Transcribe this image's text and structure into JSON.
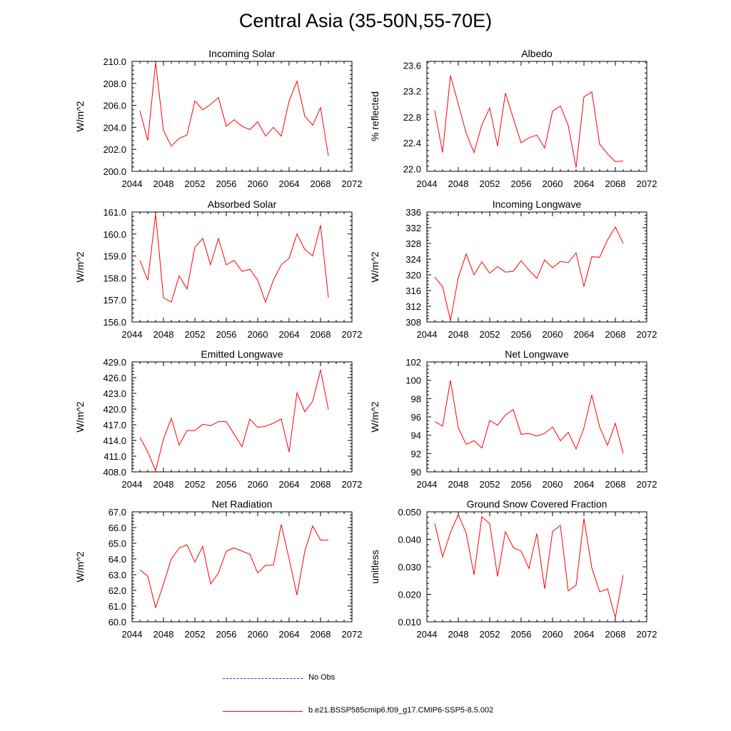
{
  "title": "Central Asia (35-50N,55-70E)",
  "colors": {
    "series": "#ff0000",
    "obs": "#3333cc",
    "axis": "#000000"
  },
  "legend": {
    "obs_label": "No Obs",
    "model_label": "b.e21.BSSP585cmip6.f09_g17.CMIP6-SSP5-8.5.002"
  },
  "chart_data": [
    {
      "type": "line",
      "title": "Incoming Solar",
      "ylabel": "W/m^2",
      "xlim": [
        2044,
        2072
      ],
      "xticks": [
        "2044",
        "2048",
        "2052",
        "2056",
        "2060",
        "2064",
        "2068",
        "2072"
      ],
      "ylim": [
        200.0,
        210.0
      ],
      "yticks": [
        "200.0",
        "202.0",
        "204.0",
        "206.0",
        "208.0",
        "210.0"
      ],
      "x": [
        2045,
        2046,
        2047,
        2048,
        2049,
        2050,
        2051,
        2052,
        2053,
        2054,
        2055,
        2056,
        2057,
        2058,
        2059,
        2060,
        2061,
        2062,
        2063,
        2064,
        2065,
        2066,
        2067,
        2068,
        2069
      ],
      "values": [
        205.5,
        202.8,
        209.9,
        203.7,
        202.3,
        203.0,
        203.3,
        206.4,
        205.6,
        206.1,
        206.7,
        204.1,
        204.7,
        204.1,
        203.8,
        204.5,
        203.2,
        204.0,
        203.2,
        206.4,
        208.2,
        205.0,
        204.2,
        205.8,
        201.4
      ]
    },
    {
      "type": "line",
      "title": "Albedo",
      "ylabel": "% reflected",
      "xlim": [
        2044,
        2072
      ],
      "xticks": [
        "2044",
        "2048",
        "2052",
        "2056",
        "2060",
        "2064",
        "2068",
        "2072"
      ],
      "ylim": [
        21.96,
        23.66
      ],
      "yticks": [
        "22.0",
        "22.4",
        "22.8",
        "23.2",
        "23.6"
      ],
      "x": [
        2045,
        2046,
        2047,
        2048,
        2049,
        2050,
        2051,
        2052,
        2053,
        2054,
        2055,
        2056,
        2057,
        2058,
        2059,
        2060,
        2061,
        2062,
        2063,
        2064,
        2065,
        2066,
        2067,
        2068,
        2069
      ],
      "values": [
        22.9,
        22.25,
        23.44,
        23.0,
        22.55,
        22.25,
        22.68,
        22.94,
        22.35,
        23.17,
        22.78,
        22.4,
        22.48,
        22.52,
        22.32,
        22.89,
        22.97,
        22.67,
        22.02,
        23.11,
        23.19,
        22.38,
        22.23,
        22.11,
        22.12
      ]
    },
    {
      "type": "line",
      "title": "Absorbed Solar",
      "ylabel": "W/m^2",
      "xlim": [
        2044,
        2072
      ],
      "xticks": [
        "2044",
        "2048",
        "2052",
        "2056",
        "2060",
        "2064",
        "2068",
        "2072"
      ],
      "ylim": [
        156.0,
        161.0
      ],
      "yticks": [
        "156.0",
        "157.0",
        "158.0",
        "159.0",
        "160.0",
        "161.0"
      ],
      "x": [
        2045,
        2046,
        2047,
        2048,
        2049,
        2050,
        2051,
        2052,
        2053,
        2054,
        2055,
        2056,
        2057,
        2058,
        2059,
        2060,
        2061,
        2062,
        2063,
        2064,
        2065,
        2066,
        2067,
        2068,
        2069
      ],
      "values": [
        158.8,
        157.9,
        160.9,
        157.1,
        156.9,
        158.1,
        157.5,
        159.4,
        159.8,
        158.6,
        159.8,
        158.6,
        158.8,
        158.3,
        158.4,
        157.9,
        156.9,
        157.9,
        158.6,
        158.9,
        160.0,
        159.3,
        159.0,
        160.4,
        157.1
      ]
    },
    {
      "type": "line",
      "title": "Incoming Longwave",
      "ylabel": "W/m^2",
      "xlim": [
        2044,
        2072
      ],
      "xticks": [
        "2044",
        "2048",
        "2052",
        "2056",
        "2060",
        "2064",
        "2068",
        "2072"
      ],
      "ylim": [
        308,
        336
      ],
      "yticks": [
        "308",
        "312",
        "316",
        "320",
        "324",
        "328",
        "332",
        "336"
      ],
      "x": [
        2045,
        2046,
        2047,
        2048,
        2049,
        2050,
        2051,
        2052,
        2053,
        2054,
        2055,
        2056,
        2057,
        2058,
        2059,
        2060,
        2061,
        2062,
        2063,
        2064,
        2065,
        2066,
        2067,
        2068,
        2069
      ],
      "values": [
        319.4,
        317.0,
        308.4,
        319.3,
        325.3,
        320.0,
        323.3,
        320.4,
        322.1,
        320.7,
        320.9,
        323.6,
        321.2,
        319.1,
        323.8,
        321.8,
        323.4,
        323.1,
        325.6,
        317.0,
        324.6,
        324.5,
        328.9,
        332.2,
        328.0
      ]
    },
    {
      "type": "line",
      "title": "Emitted Longwave",
      "ylabel": "W/m^2",
      "xlim": [
        2044,
        2072
      ],
      "xticks": [
        "2044",
        "2048",
        "2052",
        "2056",
        "2060",
        "2064",
        "2068",
        "2072"
      ],
      "ylim": [
        408.0,
        429.0
      ],
      "yticks": [
        "408.0",
        "411.0",
        "414.0",
        "417.0",
        "420.0",
        "423.0",
        "426.0",
        "429.0"
      ],
      "x": [
        2045,
        2046,
        2047,
        2048,
        2049,
        2050,
        2051,
        2052,
        2053,
        2054,
        2055,
        2056,
        2057,
        2058,
        2059,
        2060,
        2061,
        2062,
        2063,
        2064,
        2065,
        2066,
        2067,
        2068,
        2069
      ],
      "values": [
        414.6,
        411.8,
        408.2,
        414.3,
        418.2,
        413.1,
        415.9,
        415.9,
        417.1,
        416.8,
        417.6,
        417.6,
        415.2,
        412.8,
        418.1,
        416.5,
        416.7,
        417.3,
        418.1,
        411.8,
        423.1,
        419.5,
        421.5,
        427.5,
        419.9
      ]
    },
    {
      "type": "line",
      "title": "Net Longwave",
      "ylabel": "W/m^2",
      "xlim": [
        2044,
        2072
      ],
      "xticks": [
        "2044",
        "2048",
        "2052",
        "2056",
        "2060",
        "2064",
        "2068",
        "2072"
      ],
      "ylim": [
        90,
        102
      ],
      "yticks": [
        "90",
        "92",
        "94",
        "96",
        "98",
        "100",
        "102"
      ],
      "x": [
        2045,
        2046,
        2047,
        2048,
        2049,
        2050,
        2051,
        2052,
        2053,
        2054,
        2055,
        2056,
        2057,
        2058,
        2059,
        2060,
        2061,
        2062,
        2063,
        2064,
        2065,
        2066,
        2067,
        2068,
        2069
      ],
      "values": [
        95.5,
        95.0,
        100.0,
        94.8,
        93.0,
        93.4,
        92.6,
        95.6,
        95.1,
        96.2,
        96.8,
        94.1,
        94.2,
        93.9,
        94.2,
        94.9,
        93.4,
        94.3,
        92.5,
        94.8,
        98.4,
        94.9,
        92.9,
        95.3,
        92.0
      ]
    },
    {
      "type": "line",
      "title": "Net Radiation",
      "ylabel": "W/m^2",
      "xlim": [
        2044,
        2072
      ],
      "xticks": [
        "2044",
        "2048",
        "2052",
        "2056",
        "2060",
        "2064",
        "2068",
        "2072"
      ],
      "ylim": [
        60.0,
        67.0
      ],
      "yticks": [
        "60.0",
        "61.0",
        "62.0",
        "63.0",
        "64.0",
        "65.0",
        "66.0",
        "67.0"
      ],
      "x": [
        2045,
        2046,
        2047,
        2048,
        2049,
        2050,
        2051,
        2052,
        2053,
        2054,
        2055,
        2056,
        2057,
        2058,
        2059,
        2060,
        2061,
        2062,
        2063,
        2064,
        2065,
        2066,
        2067,
        2068,
        2069
      ],
      "values": [
        63.3,
        62.9,
        60.9,
        62.4,
        64.0,
        64.7,
        64.9,
        63.8,
        64.8,
        62.4,
        63.1,
        64.5,
        64.7,
        64.5,
        64.3,
        63.1,
        63.6,
        63.6,
        66.2,
        64.0,
        61.7,
        64.5,
        66.1,
        65.2,
        65.2
      ]
    },
    {
      "type": "line",
      "title": "Ground Snow Covered Fraction",
      "ylabel": "unitless",
      "xlim": [
        2044,
        2072
      ],
      "xticks": [
        "2044",
        "2048",
        "2052",
        "2056",
        "2060",
        "2064",
        "2068",
        "2072"
      ],
      "ylim": [
        0.01,
        0.05
      ],
      "yticks": [
        "0.010",
        "0.020",
        "0.030",
        "0.040",
        "0.050"
      ],
      "x": [
        2045,
        2046,
        2047,
        2048,
        2049,
        2050,
        2051,
        2052,
        2053,
        2054,
        2055,
        2056,
        2057,
        2058,
        2059,
        2060,
        2061,
        2062,
        2063,
        2064,
        2065,
        2066,
        2067,
        2068,
        2069
      ],
      "values": [
        0.0458,
        0.0336,
        0.0425,
        0.049,
        0.0423,
        0.0271,
        0.0482,
        0.0457,
        0.0265,
        0.0428,
        0.037,
        0.0357,
        0.0294,
        0.0421,
        0.022,
        0.0428,
        0.0451,
        0.0212,
        0.0233,
        0.0475,
        0.0297,
        0.0209,
        0.022,
        0.0115,
        0.027
      ]
    }
  ]
}
